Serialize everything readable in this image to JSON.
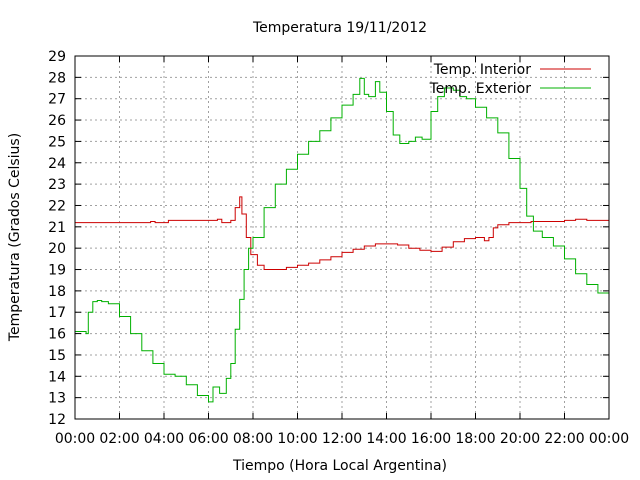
{
  "chart_data": {
    "type": "line",
    "title": "Temperatura 19/11/2012",
    "xlabel": "Tiempo (Hora Local Argentina)",
    "ylabel": "Temperatura (Grados Celsius)",
    "xlim": [
      0,
      24
    ],
    "ylim": [
      12,
      29
    ],
    "x_ticks": [
      "00:00",
      "02:00",
      "04:00",
      "06:00",
      "08:00",
      "10:00",
      "12:00",
      "14:00",
      "16:00",
      "18:00",
      "20:00",
      "22:00",
      "00:00"
    ],
    "y_ticks": [
      "12",
      "13",
      "14",
      "15",
      "16",
      "17",
      "18",
      "19",
      "20",
      "21",
      "22",
      "23",
      "24",
      "25",
      "26",
      "27",
      "28",
      "29"
    ],
    "grid": true,
    "legend_position": "top-right",
    "series": [
      {
        "name": "Temp. Interior",
        "color": "#cc0000",
        "x": [
          0,
          1,
          2,
          3,
          3.4,
          3.6,
          4,
          4.2,
          4.5,
          5,
          5.5,
          6,
          6.4,
          6.6,
          7,
          7.2,
          7.4,
          7.5,
          7.7,
          7.9,
          8.2,
          8.5,
          9,
          9.5,
          10,
          10.5,
          11,
          11.5,
          12,
          12.5,
          13,
          13.5,
          14,
          14.5,
          15,
          15.5,
          16,
          16.5,
          17,
          17.5,
          18,
          18.4,
          18.6,
          18.8,
          19,
          19.5,
          20,
          20.5,
          21,
          22,
          22.5,
          23,
          23.5,
          24
        ],
        "y": [
          21.2,
          21.2,
          21.2,
          21.2,
          21.25,
          21.2,
          21.2,
          21.3,
          21.3,
          21.3,
          21.3,
          21.3,
          21.35,
          21.2,
          21.3,
          21.9,
          22.4,
          21.6,
          20.5,
          19.7,
          19.2,
          19.0,
          19.0,
          19.1,
          19.2,
          19.3,
          19.45,
          19.6,
          19.8,
          19.95,
          20.1,
          20.2,
          20.2,
          20.15,
          20.0,
          19.9,
          19.85,
          20.05,
          20.3,
          20.45,
          20.5,
          20.35,
          20.5,
          20.95,
          21.1,
          21.2,
          21.2,
          21.25,
          21.25,
          21.3,
          21.35,
          21.3,
          21.3,
          21.3
        ]
      },
      {
        "name": "Temp. Exterior",
        "color": "#00b000",
        "x": [
          0,
          0.4,
          0.5,
          0.6,
          0.8,
          1.0,
          1.2,
          1.5,
          2,
          2.5,
          3,
          3.5,
          4,
          4.5,
          5,
          5.5,
          6,
          6.2,
          6.5,
          6.8,
          7.0,
          7.2,
          7.4,
          7.6,
          7.8,
          8,
          8.5,
          9,
          9.5,
          10,
          10.5,
          11,
          11.5,
          12,
          12.5,
          12.8,
          13.0,
          13.2,
          13.5,
          13.7,
          14,
          14.3,
          14.6,
          15,
          15.3,
          15.6,
          16,
          16.3,
          16.6,
          17,
          17.3,
          17.6,
          18,
          18.5,
          19,
          19.5,
          20,
          20.3,
          20.6,
          21,
          21.5,
          22,
          22.5,
          23,
          23.5,
          24
        ],
        "y": [
          16.1,
          16.1,
          16.0,
          17.0,
          17.5,
          17.55,
          17.5,
          17.4,
          16.8,
          16.0,
          15.2,
          14.6,
          14.1,
          14.0,
          13.6,
          13.1,
          12.8,
          13.5,
          13.2,
          13.9,
          14.6,
          16.2,
          17.6,
          19.0,
          20.0,
          20.5,
          21.9,
          23.0,
          23.7,
          24.4,
          25.0,
          25.5,
          26.1,
          26.7,
          27.2,
          27.95,
          27.2,
          27.1,
          27.8,
          27.3,
          26.4,
          25.3,
          24.9,
          25.0,
          25.2,
          25.1,
          26.4,
          27.1,
          27.5,
          27.4,
          27.1,
          27.0,
          26.6,
          26.1,
          25.4,
          24.2,
          22.8,
          21.5,
          20.8,
          20.5,
          20.1,
          19.5,
          18.8,
          18.3,
          17.9,
          17.4
        ]
      }
    ]
  }
}
